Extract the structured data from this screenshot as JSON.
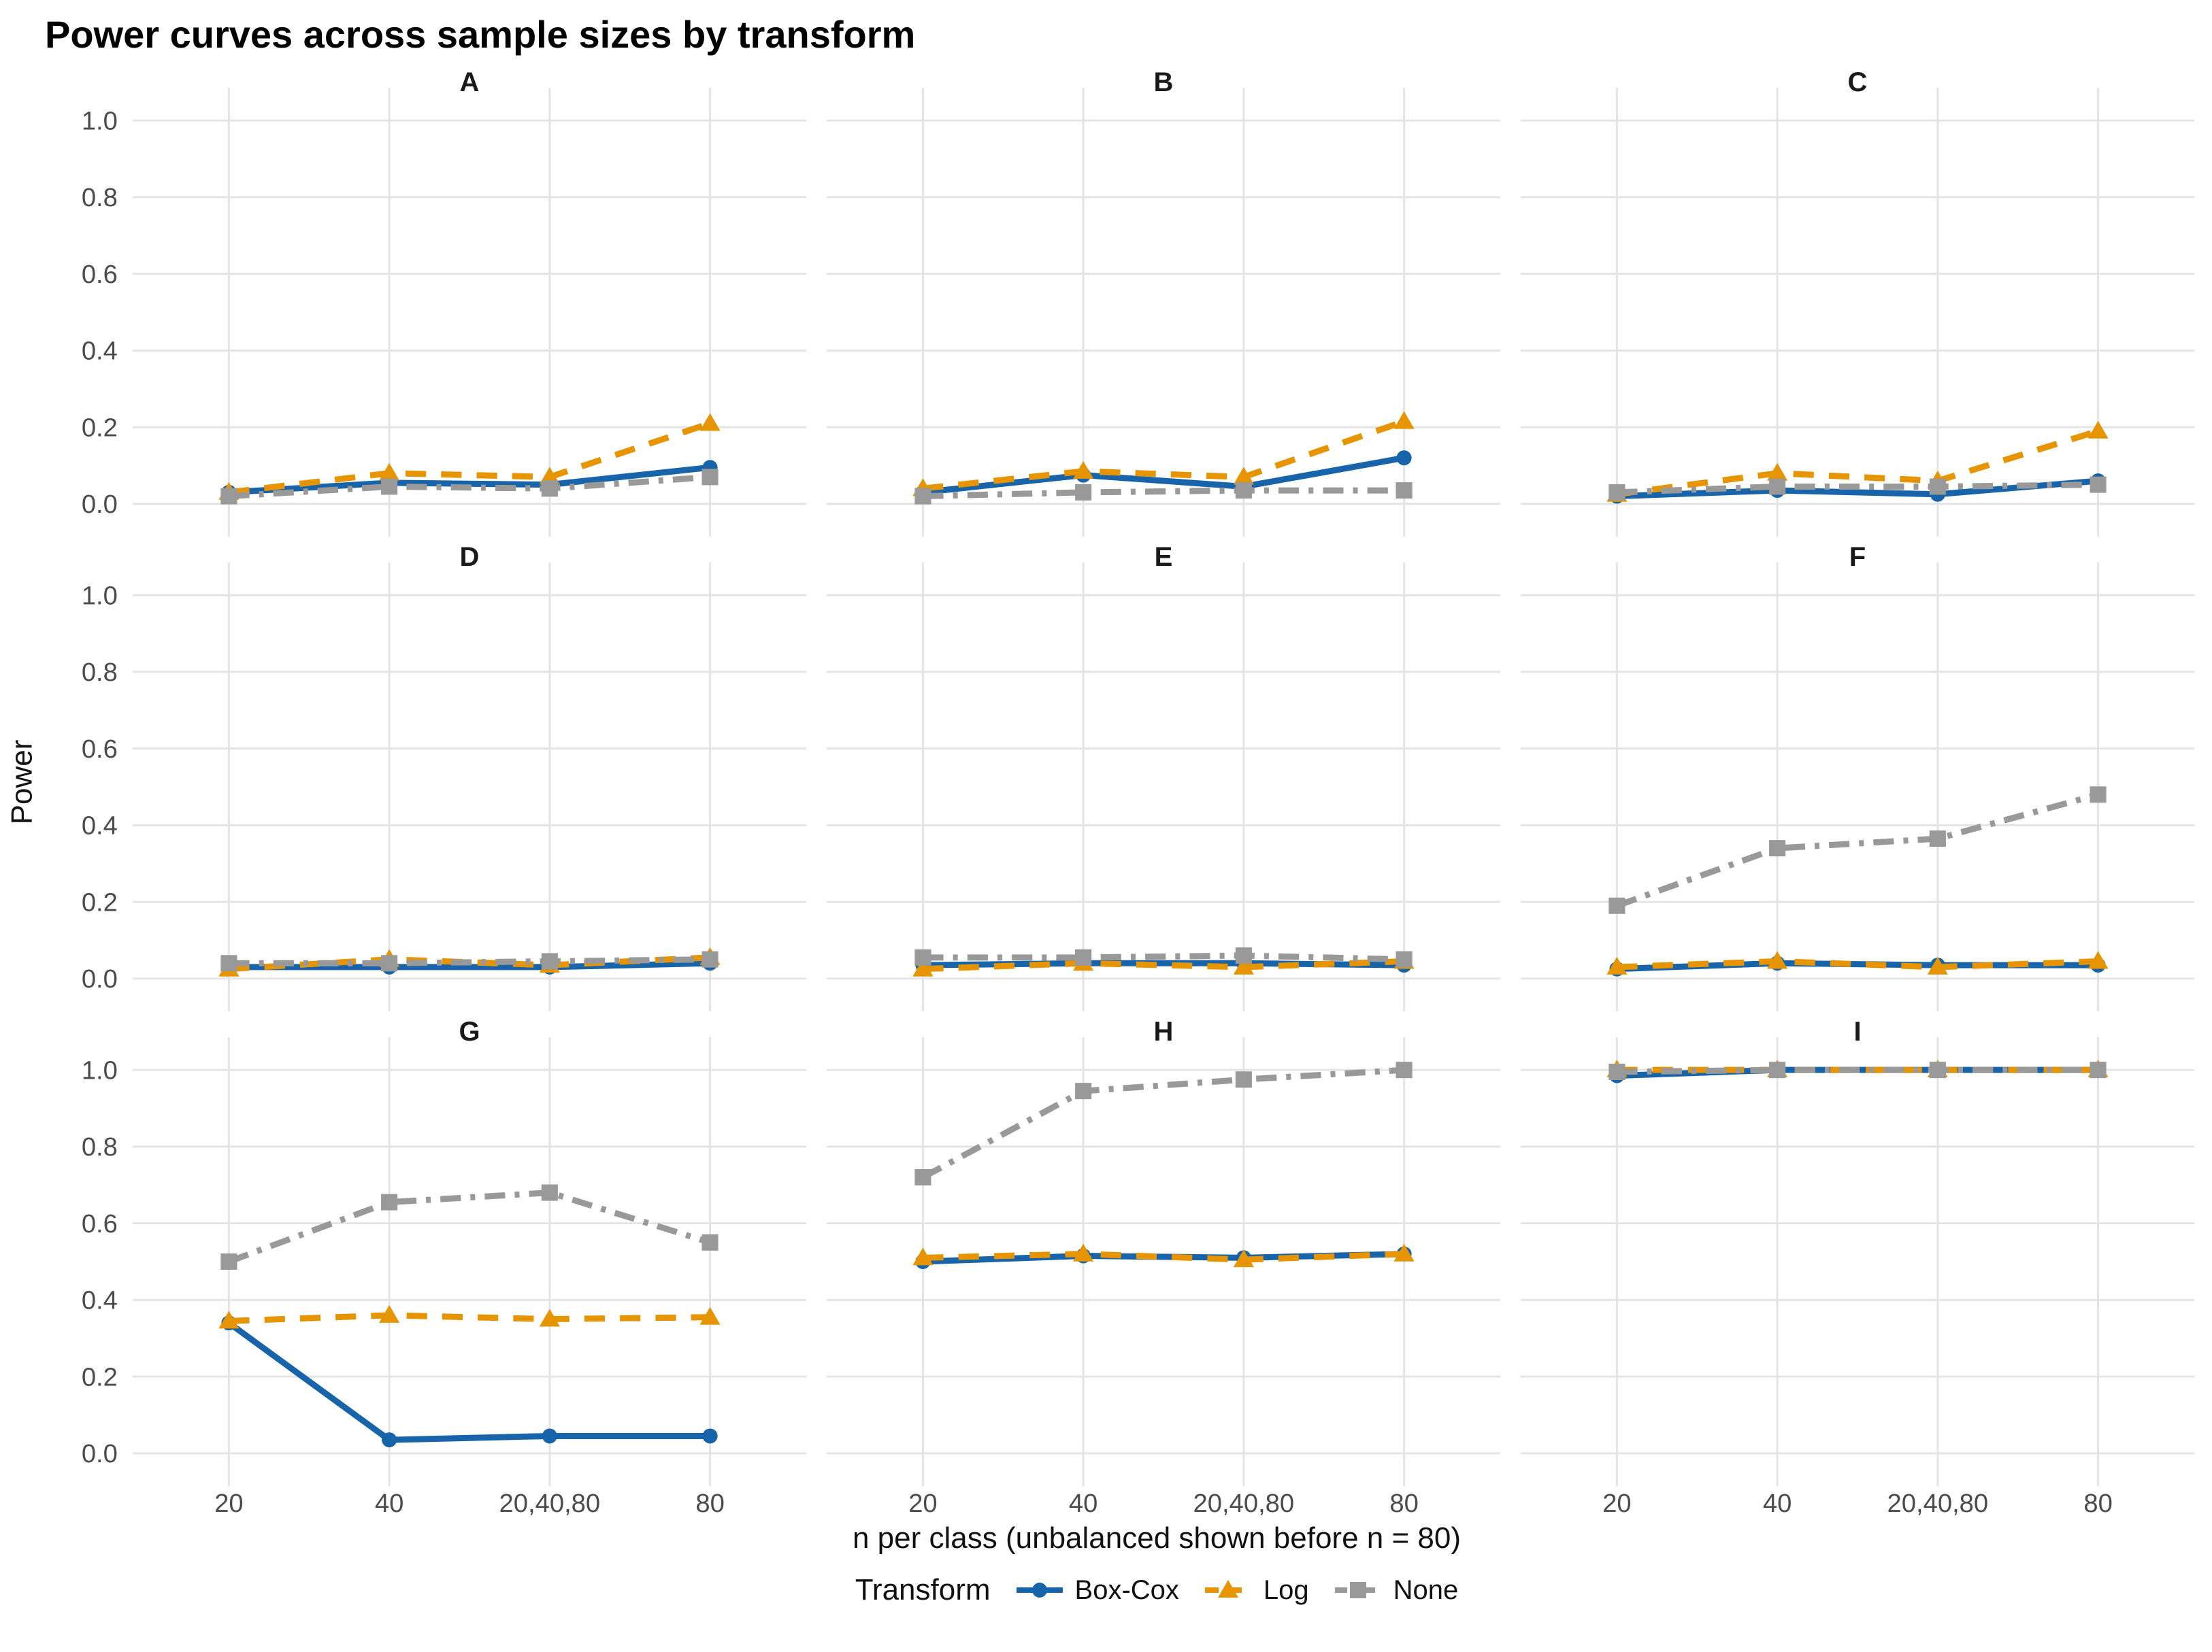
{
  "title": "Power curves across sample sizes by transform",
  "axes": {
    "x_title": "n per class (unbalanced shown before n = 80)",
    "y_title": "Power"
  },
  "legend": {
    "title": "Transform",
    "items": [
      "Box-Cox",
      "Log",
      "None"
    ]
  },
  "colors": {
    "box_cox": "#1764ab",
    "log": "#e69500",
    "none": "#999999",
    "gridline": "#e4e4e4",
    "tick_text": "#4b4b4b"
  },
  "chart_data": {
    "type": "line",
    "title": "Power curves across sample sizes by transform",
    "xlabel": "n per class (unbalanced shown before n = 80)",
    "ylabel": "Power",
    "categories": [
      "20",
      "40",
      "20,40,80",
      "80"
    ],
    "ylim": [
      0,
      1
    ],
    "yticks": [
      1.0,
      0.8,
      0.6,
      0.4,
      0.2,
      0.0
    ],
    "ytick_labels": [
      "1.0",
      "0.8",
      "0.6",
      "0.4",
      "0.2",
      "0.0"
    ],
    "grid": "major-only",
    "legend_position": "bottom",
    "facet_layout": [
      3,
      3
    ],
    "series_meta": [
      {
        "name": "Box-Cox",
        "color": "#1764ab",
        "marker": "circle",
        "linestyle": "solid"
      },
      {
        "name": "Log",
        "color": "#e69500",
        "marker": "triangle",
        "linestyle": "dashed"
      },
      {
        "name": "None",
        "color": "#999999",
        "marker": "square",
        "linestyle": "dashdot"
      }
    ],
    "facets": [
      {
        "label": "A",
        "series": [
          {
            "name": "Box-Cox",
            "values": [
              0.03,
              0.055,
              0.05,
              0.095
            ]
          },
          {
            "name": "Log",
            "values": [
              0.03,
              0.08,
              0.07,
              0.21
            ]
          },
          {
            "name": "None",
            "values": [
              0.02,
              0.045,
              0.04,
              0.07
            ]
          }
        ]
      },
      {
        "label": "B",
        "series": [
          {
            "name": "Box-Cox",
            "values": [
              0.03,
              0.075,
              0.045,
              0.12
            ]
          },
          {
            "name": "Log",
            "values": [
              0.04,
              0.085,
              0.07,
              0.215
            ]
          },
          {
            "name": "None",
            "values": [
              0.02,
              0.03,
              0.035,
              0.035
            ]
          }
        ]
      },
      {
        "label": "C",
        "series": [
          {
            "name": "Box-Cox",
            "values": [
              0.02,
              0.035,
              0.025,
              0.06
            ]
          },
          {
            "name": "Log",
            "values": [
              0.025,
              0.08,
              0.06,
              0.19
            ]
          },
          {
            "name": "None",
            "values": [
              0.03,
              0.045,
              0.045,
              0.05
            ]
          }
        ]
      },
      {
        "label": "D",
        "series": [
          {
            "name": "Box-Cox",
            "values": [
              0.03,
              0.03,
              0.03,
              0.04
            ]
          },
          {
            "name": "Log",
            "values": [
              0.025,
              0.05,
              0.035,
              0.055
            ]
          },
          {
            "name": "None",
            "values": [
              0.04,
              0.04,
              0.045,
              0.05
            ]
          }
        ]
      },
      {
        "label": "E",
        "series": [
          {
            "name": "Box-Cox",
            "values": [
              0.035,
              0.04,
              0.04,
              0.035
            ]
          },
          {
            "name": "Log",
            "values": [
              0.025,
              0.04,
              0.03,
              0.045
            ]
          },
          {
            "name": "None",
            "values": [
              0.055,
              0.055,
              0.06,
              0.05
            ]
          }
        ]
      },
      {
        "label": "F",
        "series": [
          {
            "name": "Box-Cox",
            "values": [
              0.025,
              0.04,
              0.035,
              0.035
            ]
          },
          {
            "name": "Log",
            "values": [
              0.03,
              0.045,
              0.03,
              0.045
            ]
          },
          {
            "name": "None",
            "values": [
              0.19,
              0.34,
              0.365,
              0.48
            ]
          }
        ]
      },
      {
        "label": "G",
        "series": [
          {
            "name": "Box-Cox",
            "values": [
              0.34,
              0.035,
              0.045,
              0.045
            ]
          },
          {
            "name": "Log",
            "values": [
              0.345,
              0.36,
              0.35,
              0.355
            ]
          },
          {
            "name": "None",
            "values": [
              0.5,
              0.655,
              0.68,
              0.55
            ]
          }
        ]
      },
      {
        "label": "H",
        "series": [
          {
            "name": "Box-Cox",
            "values": [
              0.5,
              0.515,
              0.51,
              0.52
            ]
          },
          {
            "name": "Log",
            "values": [
              0.51,
              0.52,
              0.505,
              0.52
            ]
          },
          {
            "name": "None",
            "values": [
              0.72,
              0.945,
              0.975,
              1.0
            ]
          }
        ]
      },
      {
        "label": "I",
        "series": [
          {
            "name": "Box-Cox",
            "values": [
              0.985,
              1.0,
              1.0,
              1.0
            ]
          },
          {
            "name": "Log",
            "values": [
              1.0,
              1.0,
              1.0,
              1.0
            ]
          },
          {
            "name": "None",
            "values": [
              0.995,
              1.0,
              1.0,
              1.0
            ]
          }
        ]
      }
    ]
  }
}
